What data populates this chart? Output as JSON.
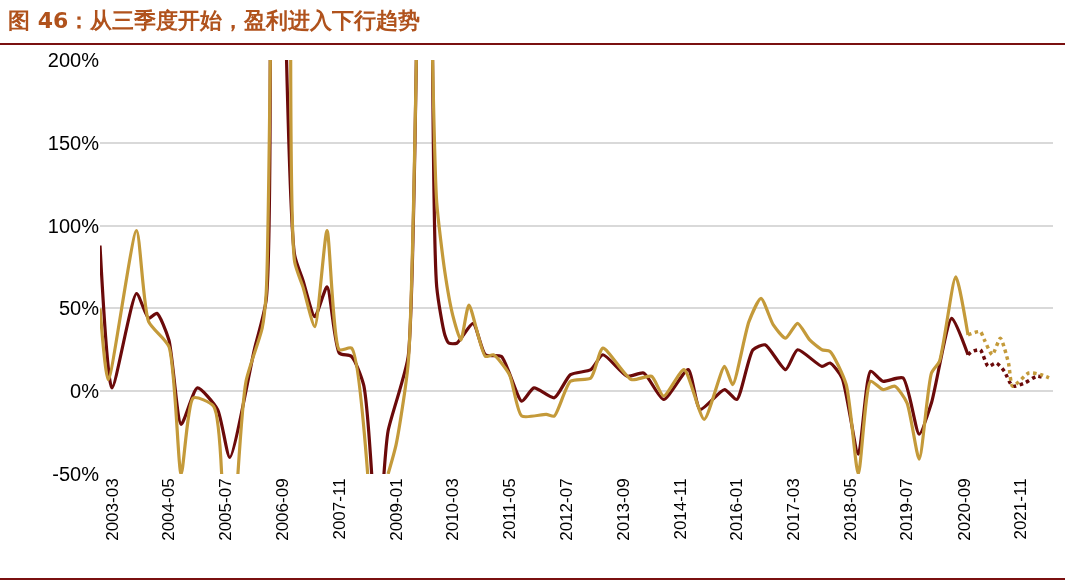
{
  "chart_data": {
    "type": "line",
    "title": "图 46：从三季度开始，盈利进入下行趋势",
    "series": [
      {
        "color": "#6b0a0a",
        "line_style": "solid",
        "x": [
          "2002-12",
          "2003-03",
          "2003-09",
          "2003-12",
          "2004-02",
          "2004-05",
          "2004-08",
          "2004-12",
          "2005-05",
          "2005-08",
          "2006-02",
          "2006-05",
          "2006-06",
          "2006-07",
          "2006-08",
          "2006-10",
          "2006-12",
          "2007-02",
          "2007-05",
          "2007-08",
          "2007-11",
          "2008-02",
          "2008-05",
          "2008-07",
          "2008-08",
          "2008-09",
          "2008-10",
          "2008-11",
          "2009-02",
          "2009-04",
          "2009-06",
          "2009-07",
          "2009-08",
          "2009-10",
          "2009-11",
          "2010-01",
          "2010-02",
          "2010-04",
          "2010-08",
          "2010-11",
          "2011-03",
          "2011-08",
          "2011-11",
          "2012-04",
          "2012-08",
          "2013-01",
          "2013-04",
          "2013-10",
          "2014-02",
          "2014-07",
          "2015-01",
          "2015-04",
          "2015-10",
          "2016-01",
          "2016-05",
          "2016-08",
          "2017-01",
          "2017-04",
          "2017-10",
          "2017-12",
          "2018-03",
          "2018-07",
          "2018-10",
          "2019-01",
          "2019-06",
          "2019-10",
          "2020-01",
          "2020-06",
          "2020-10"
        ],
        "values": [
          88,
          2,
          59,
          44,
          47,
          31,
          -20,
          2,
          -11,
          -40,
          25,
          55,
          200,
          null,
          null,
          200,
          82,
          67,
          45,
          63,
          23,
          21,
          4,
          -50,
          null,
          null,
          -50,
          -24,
          2,
          21,
          200,
          null,
          null,
          200,
          63,
          34,
          29,
          29,
          41,
          22,
          21,
          -6,
          2,
          -4,
          10,
          13,
          22,
          9,
          11,
          -5,
          13,
          -11,
          1,
          -5,
          25,
          28,
          13,
          25,
          15,
          17,
          8,
          -38,
          12,
          6,
          8,
          -26,
          -7,
          44,
          22
        ]
      },
      {
        "color": "#c49a3a",
        "line_style": "solid",
        "x": [
          "2002-12",
          "2003-02",
          "2003-09",
          "2003-12",
          "2004-05",
          "2004-08",
          "2004-11",
          "2005-04",
          "2005-06",
          "2005-07",
          "2005-08",
          "2005-10",
          "2005-12",
          "2006-04",
          "2006-05",
          "2006-06",
          "2006-07",
          "2006-08",
          "2006-11",
          "2006-12",
          "2007-02",
          "2007-05",
          "2007-08",
          "2007-11",
          "2008-02",
          "2008-06",
          "2008-07",
          "2008-09",
          "2008-11",
          "2009-01",
          "2009-04",
          "2009-06",
          "2009-07",
          "2009-08",
          "2009-10",
          "2009-11",
          "2010-01",
          "2010-03",
          "2010-05",
          "2010-07",
          "2010-11",
          "2011-01",
          "2011-05",
          "2011-08",
          "2012-02",
          "2012-04",
          "2012-08",
          "2013-01",
          "2013-04",
          "2013-11",
          "2014-04",
          "2014-07",
          "2014-12",
          "2015-05",
          "2015-10",
          "2015-12",
          "2016-04",
          "2016-07",
          "2016-10",
          "2017-01",
          "2017-04",
          "2017-07",
          "2017-10",
          "2017-12",
          "2018-04",
          "2018-07",
          "2018-10",
          "2019-01",
          "2019-04",
          "2019-07",
          "2019-10",
          "2020-01",
          "2020-03",
          "2020-07",
          "2020-10"
        ],
        "values": [
          50,
          7,
          97,
          42,
          27,
          -50,
          -4,
          -9,
          -50,
          null,
          null,
          -50,
          6,
          38,
          59,
          200,
          null,
          null,
          200,
          78,
          63,
          39,
          97,
          25,
          26,
          -50,
          null,
          null,
          -50,
          -32,
          17,
          200,
          null,
          null,
          200,
          114,
          72,
          46,
          31,
          52,
          21,
          22,
          10,
          -15,
          -14,
          -15,
          6,
          8,
          26,
          7,
          9,
          -3,
          13,
          -17,
          15,
          4,
          42,
          56,
          40,
          32,
          41,
          31,
          25,
          24,
          4,
          -50,
          6,
          1,
          3,
          -7,
          -41,
          11,
          18,
          69,
          34
        ]
      },
      {
        "color": "#6b0a0a",
        "line_style": "dotted",
        "x": [
          "2020-10",
          "2020-11",
          "2021-01",
          "2021-03",
          "2021-05",
          "2021-07",
          "2021-09",
          "2021-12",
          "2022-03",
          "2022-05"
        ],
        "values": [
          22,
          24,
          25,
          15,
          17,
          12,
          3,
          5,
          9,
          8
        ]
      },
      {
        "color": "#c49a3a",
        "line_style": "dotted",
        "x": [
          "2020-10",
          "2021-01",
          "2021-02",
          "2021-04",
          "2021-06",
          "2021-08",
          "2021-09",
          "2022-01",
          "2022-04",
          "2022-06"
        ],
        "values": [
          34,
          36,
          31,
          22,
          32,
          17,
          3,
          11,
          10,
          8
        ]
      }
    ],
    "xlim": [
      "2002-12",
      "2022-07"
    ],
    "xticks": [
      {
        "value": "2003-03",
        "label": "2003-03"
      },
      {
        "value": "2004-05",
        "label": "2004-05"
      },
      {
        "value": "2005-07",
        "label": "2005-07"
      },
      {
        "value": "2006-09",
        "label": "2006-09"
      },
      {
        "value": "2007-11",
        "label": "2007-11"
      },
      {
        "value": "2009-01",
        "label": "2009-01"
      },
      {
        "value": "2010-03",
        "label": "2010-03"
      },
      {
        "value": "2011-05",
        "label": "2011-05"
      },
      {
        "value": "2012-07",
        "label": "2012-07"
      },
      {
        "value": "2013-09",
        "label": "2013-09"
      },
      {
        "value": "2014-11",
        "label": "2014-11"
      },
      {
        "value": "2016-01",
        "label": "2016-01"
      },
      {
        "value": "2017-03",
        "label": "2017-03"
      },
      {
        "value": "2018-05",
        "label": "2018-05"
      },
      {
        "value": "2019-07",
        "label": "2019-07"
      },
      {
        "value": "2020-09",
        "label": "2020-09"
      },
      {
        "value": "2021-11",
        "label": "2021-11"
      }
    ],
    "ylim": [
      -50,
      200
    ],
    "yticks": [
      {
        "value": -50,
        "label": "-50%"
      },
      {
        "value": 0,
        "label": "0%"
      },
      {
        "value": 50,
        "label": "50%"
      },
      {
        "value": 100,
        "label": "100%"
      },
      {
        "value": 150,
        "label": "150%"
      },
      {
        "value": 200,
        "label": "200%"
      }
    ],
    "grid": "y"
  }
}
